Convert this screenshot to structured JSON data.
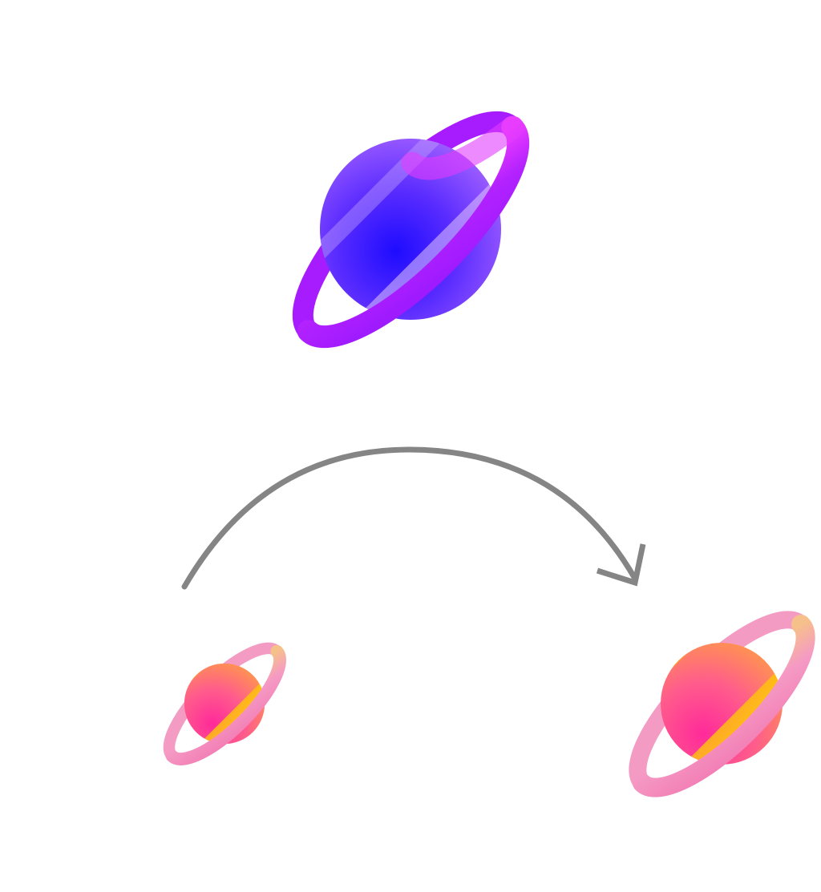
{
  "diagram": {
    "nodes": [
      {
        "id": "large-planet",
        "icon": "ringed-planet-icon",
        "palette": "purple-blue",
        "colors": {
          "light": "#a58bff",
          "mid": "#7b3cff",
          "dark": "#2a12f5",
          "ring": "#c92cff"
        }
      },
      {
        "id": "small-planet-source",
        "icon": "ringed-planet-icon",
        "palette": "pink-orange",
        "colors": {
          "light": "#ff9a3c",
          "mid": "#ff5fa6",
          "dark": "#ff2f8f",
          "ring": "#f7a5c9"
        }
      },
      {
        "id": "medium-planet-target",
        "icon": "ringed-planet-icon",
        "palette": "pink-orange",
        "colors": {
          "light": "#ff9a3c",
          "mid": "#ff5fa6",
          "dark": "#ff2f8f",
          "ring": "#f7a5c9"
        }
      }
    ],
    "edges": [
      {
        "from": "small-planet-source",
        "to": "medium-planet-target",
        "style": "curved-arrow",
        "color": "#858585"
      }
    ]
  }
}
